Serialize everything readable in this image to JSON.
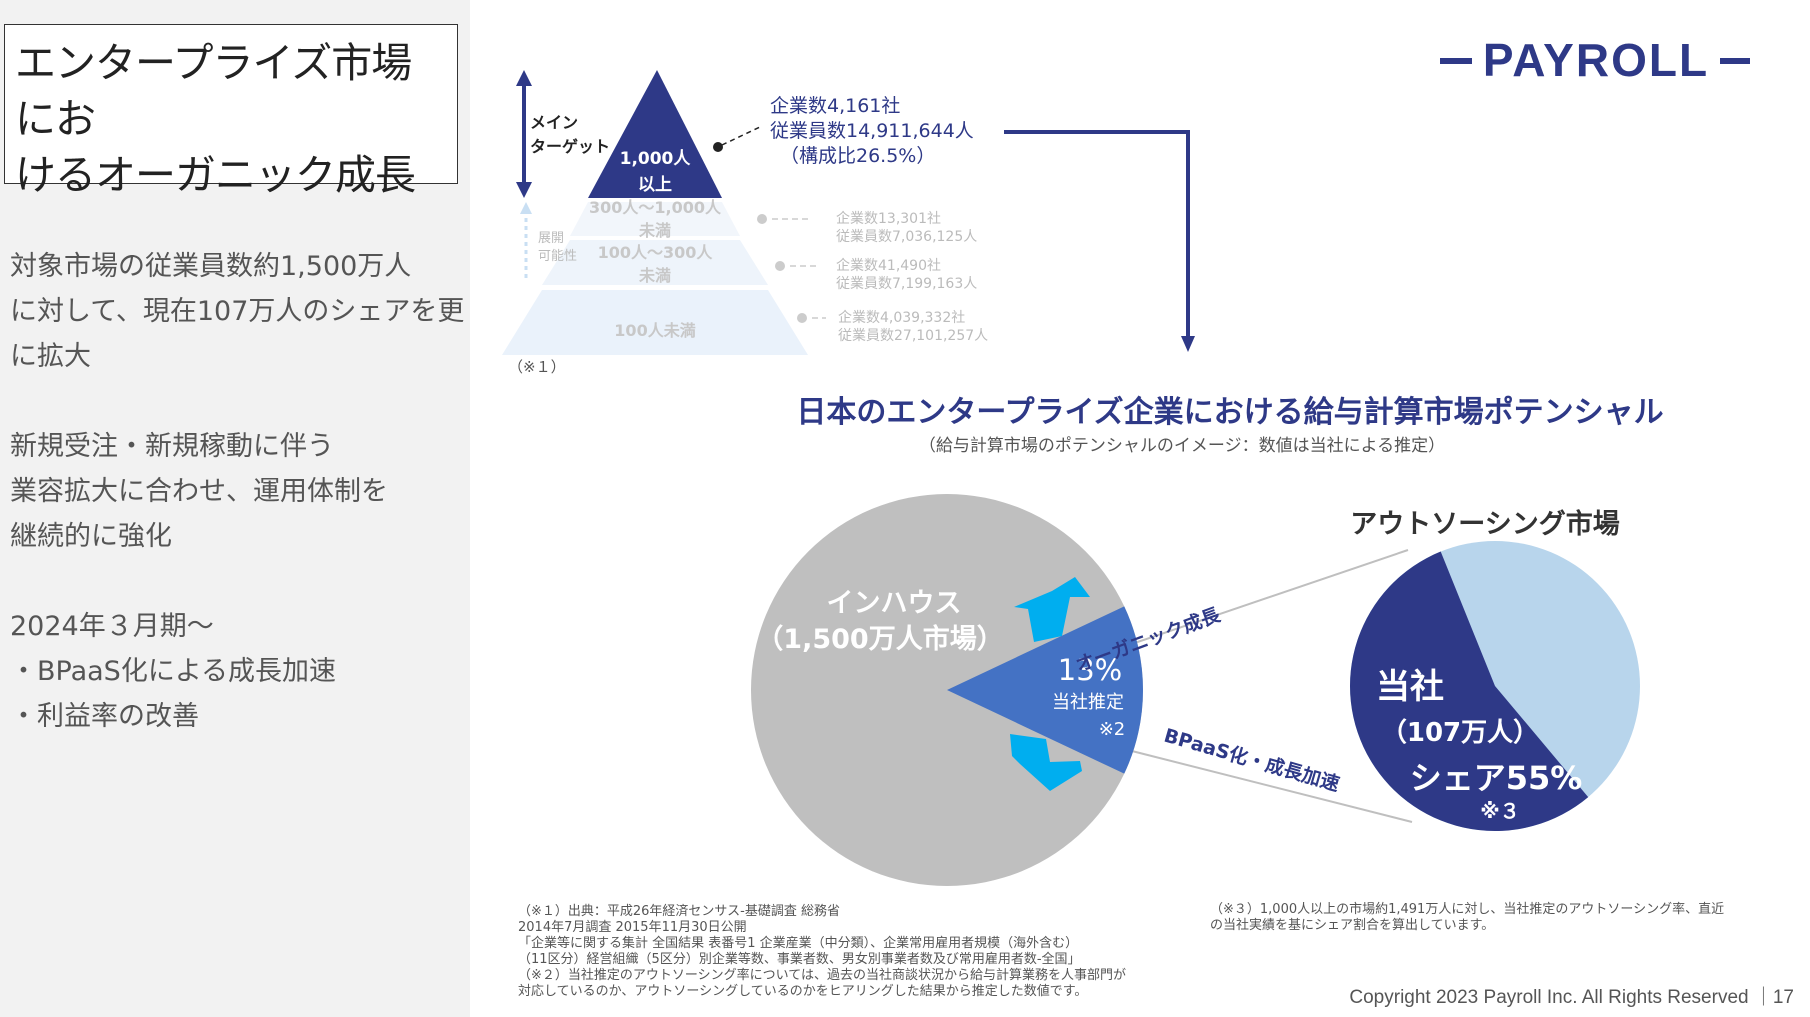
{
  "left": {
    "title": [
      "エンタープライズ市場にお",
      "けるオーガニック成長"
    ],
    "para1": [
      "対象市場の従業員数約1,500万人",
      "に対して、現在107万人のシェアを更",
      "に拡大"
    ],
    "para2": [
      "新規受注・新規稼動に伴う",
      "業容拡大に合わせ、運用体制を",
      "継続的に強化"
    ],
    "para3": [
      "2024年３月期～",
      "・BPaaS化による成長加速",
      "・利益率の改善"
    ]
  },
  "logo": "PAYROLL",
  "pyramid": {
    "main_target": [
      "メイン",
      "ターゲット"
    ],
    "expansion": [
      "展開",
      "可能性"
    ],
    "tiers": [
      {
        "label": [
          "1,000人",
          "以上"
        ],
        "info": [
          "企業数4,161社",
          "従業員数14,911,644人",
          "（構成比26.5%）"
        ]
      },
      {
        "label": [
          "300人～1,000人",
          "未満"
        ],
        "info": [
          "企業数13,301社",
          "従業員数7,036,125人"
        ]
      },
      {
        "label": [
          "100人～300人",
          "未満"
        ],
        "info": [
          "企業数41,490社",
          "従業員数7,199,163人"
        ]
      },
      {
        "label": [
          "100人未満"
        ],
        "info": [
          "企業数4,039,332社",
          "従業員数27,101,257人"
        ]
      }
    ],
    "note": "（※１）"
  },
  "section": {
    "title": "日本のエンタープライズ企業における給与計算市場ポテンシャル",
    "subtitle": "（給与計算市場のポテンシャルのイメージ：数値は当社による推定）"
  },
  "inhouse": {
    "label1": "インハウス",
    "label2": "（1,500万人市場）",
    "slice_pct": "13%",
    "slice_note1": "当社推定",
    "slice_note2": "※2",
    "arrow_up_label": "オーガニック成長",
    "arrow_down_label": "BPaaS化・成長加速"
  },
  "outsourcing": {
    "title": "アウトソーシング市場",
    "company": "当社",
    "count": "（107万人）",
    "share": "シェア55%",
    "note": "※３"
  },
  "chart_data": [
    {
      "type": "pie",
      "title": "インハウス（1,500万人市場）",
      "series": [
        {
          "values": [
            13,
            87
          ]
        }
      ],
      "labels": [
        "13% 当社推定 ※2",
        ""
      ],
      "colors": [
        "#4472c4",
        "#bfbfbf"
      ]
    },
    {
      "type": "pie",
      "title": "アウトソーシング市場",
      "series": [
        {
          "values": [
            55,
            45
          ]
        }
      ],
      "labels": [
        "当社（107万人）シェア55% ※３",
        ""
      ],
      "colors": [
        "#2e3987",
        "#b8d5ec"
      ]
    }
  ],
  "footnotes": {
    "left": [
      "（※１）出典：平成26年経済センサス-基礎調査 総務省",
      "2014年7月調査 2015年11月30日公開",
      "「企業等に関する集計 全国結果 表番号1 企業産業（中分類）、企業常用雇用者規模（海外含む）",
      "（11区分）経営組織（5区分）別企業等数、事業者数、男女別事業者数及び常用雇用者数-全国」",
      "（※２）当社推定のアウトソーシング率については、過去の当社商談状況から給与計算業務を人事部門が",
      "対応しているのか、アウトソーシングしているのかをヒアリングした結果から推定した数値です。"
    ],
    "right": [
      "（※３）1,000人以上の市場約1,491万人に対し、当社推定のアウトソーシング率、直近",
      "の当社実績を基にシェア割合を算出しています。"
    ]
  },
  "copyright": "Copyright 2023 Payroll Inc. All Rights Reserved ｜17",
  "colors": {
    "navy": "#2e3987",
    "blue": "#4472c4",
    "cyan": "#00aeef",
    "gray": "#bfbfbf",
    "lightblue": "#b8d5ec"
  }
}
